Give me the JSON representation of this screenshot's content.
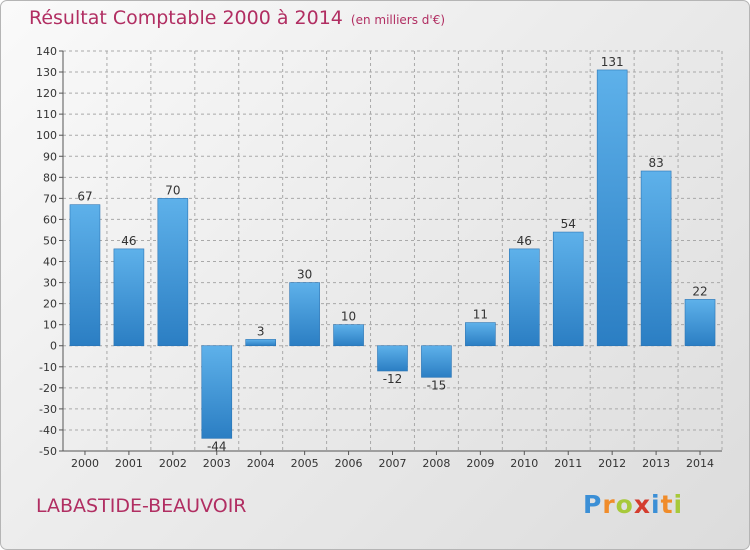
{
  "chart_title": "Résultat Comptable 2000 à 2014",
  "chart_subtitle": "(en milliers d'€)",
  "location": "LABASTIDE-BEAUVOIR",
  "brand": {
    "letters": [
      {
        "ch": "P",
        "color": "#3b8fd6"
      },
      {
        "ch": "r",
        "color": "#f08c2a"
      },
      {
        "ch": "o",
        "color": "#a7c93a"
      },
      {
        "ch": "x",
        "color": "#d43c2e"
      },
      {
        "ch": "i",
        "color": "#3b8fd6"
      },
      {
        "ch": "t",
        "color": "#f08c2a"
      },
      {
        "ch": "i",
        "color": "#a7c93a"
      }
    ]
  },
  "colors": {
    "title": "#b12e62",
    "bar_light": "#5eb1ea",
    "bar_dark": "#2b7ec3",
    "grid": "#a9a9a9"
  },
  "chart_data": {
    "type": "bar",
    "title": "Résultat Comptable 2000 à 2014",
    "subtitle": "(en milliers d'€)",
    "categories": [
      "2000",
      "2001",
      "2002",
      "2003",
      "2004",
      "2005",
      "2006",
      "2007",
      "2008",
      "2009",
      "2010",
      "2011",
      "2012",
      "2013",
      "2014"
    ],
    "values": [
      67,
      46,
      70,
      -44,
      3,
      30,
      10,
      -12,
      -15,
      11,
      46,
      54,
      131,
      83,
      22
    ],
    "ylim": [
      -50,
      140
    ],
    "yticks": [
      140,
      130,
      120,
      110,
      100,
      90,
      80,
      70,
      60,
      50,
      40,
      30,
      20,
      10,
      0,
      -10,
      -20,
      -30,
      -40,
      -50
    ],
    "ytick_labels": [
      "140",
      "130",
      "120",
      "110",
      "100",
      "90",
      "80",
      "70",
      "60",
      "50",
      "40",
      "30",
      "20",
      "10",
      "0",
      "-10",
      "-20",
      "-30",
      "-40",
      "-50"
    ],
    "data_labels": [
      "67",
      "46",
      "70",
      "-44",
      "3",
      "30",
      "10",
      "-12",
      "-15",
      "11",
      "46",
      "54",
      "131",
      "83",
      "22"
    ],
    "grid": "horizontal dashed",
    "legend": "none"
  }
}
